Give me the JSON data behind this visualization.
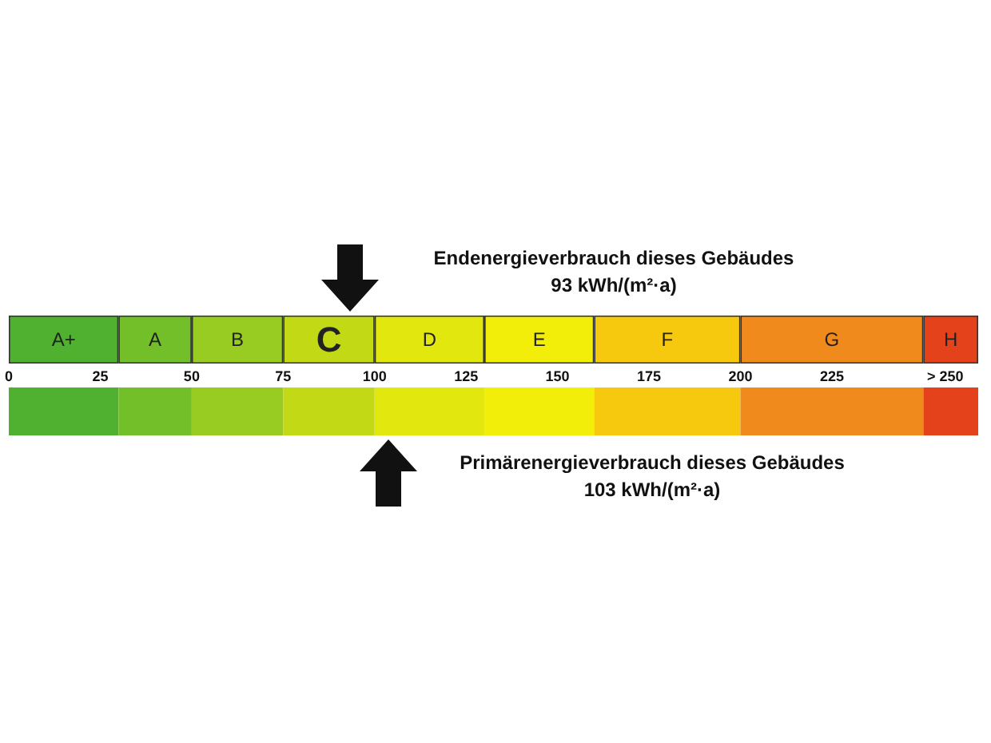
{
  "chart_data": {
    "type": "bar",
    "orientation": "horizontal",
    "stacked": true,
    "categories": [
      null,
      null
    ],
    "xlim": [
      0,
      265
    ],
    "xticks": [
      0,
      25,
      50,
      75,
      100,
      125,
      150,
      175,
      200,
      225,
      {
        "value": 256,
        "label": "> 250"
      }
    ],
    "series": [
      {
        "name": "A+",
        "color": "#4fb12f",
        "values": [
          30,
          30
        ]
      },
      {
        "name": "A",
        "color": "#72bf2a",
        "values": [
          20,
          20
        ]
      },
      {
        "name": "B",
        "color": "#98cc22",
        "values": [
          25,
          25
        ]
      },
      {
        "name": "C",
        "color": "#c2da16",
        "values": [
          25,
          25
        ]
      },
      {
        "name": "D",
        "color": "#e2e80e",
        "values": [
          30,
          30
        ]
      },
      {
        "name": "E",
        "color": "#f2ee0a",
        "values": [
          30,
          30
        ]
      },
      {
        "name": "F",
        "color": "#f6c80e",
        "values": [
          40,
          40
        ]
      },
      {
        "name": "G",
        "color": "#f08a1c",
        "values": [
          50,
          50
        ]
      },
      {
        "name": "H",
        "color": "#e4421a",
        "values": [
          15,
          15
        ]
      }
    ],
    "annotations": [
      "Endenergieverbrauch dieses Gebäudes\n93 kWh/(m²·a)",
      "Primärenergieverbrauch dieses Gebäudes\n103 kWh/(m²·a)"
    ]
  }
}
